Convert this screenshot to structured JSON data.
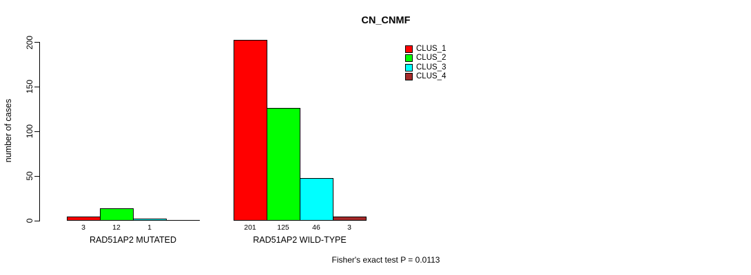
{
  "title": "CN_CNMF",
  "footer": "Fisher's exact test P = 0.0113",
  "chart_data": {
    "type": "bar",
    "title": "CN_CNMF",
    "xlabel": "",
    "ylabel": "number of cases",
    "yticks": [
      0,
      50,
      100,
      150,
      200
    ],
    "ylim": [
      0,
      201
    ],
    "grid": false,
    "legend_position": "top-right",
    "legend": [
      {
        "name": "CLUS_1",
        "color": "#ff0000"
      },
      {
        "name": "CLUS_2",
        "color": "#00ff00"
      },
      {
        "name": "CLUS_3",
        "color": "#00ffff"
      },
      {
        "name": "CLUS_4",
        "color": "#a52a2a"
      }
    ],
    "groups": [
      {
        "label": "RAD51AP2 MUTATED",
        "values": [
          3,
          12,
          1,
          0
        ],
        "bar_labels": [
          "3",
          "12",
          "1",
          ""
        ]
      },
      {
        "label": "RAD51AP2 WILD-TYPE",
        "values": [
          201,
          125,
          46,
          3
        ],
        "bar_labels": [
          "201",
          "125",
          "46",
          "3"
        ]
      }
    ],
    "annotation": "Fisher's exact test P = 0.0113"
  }
}
